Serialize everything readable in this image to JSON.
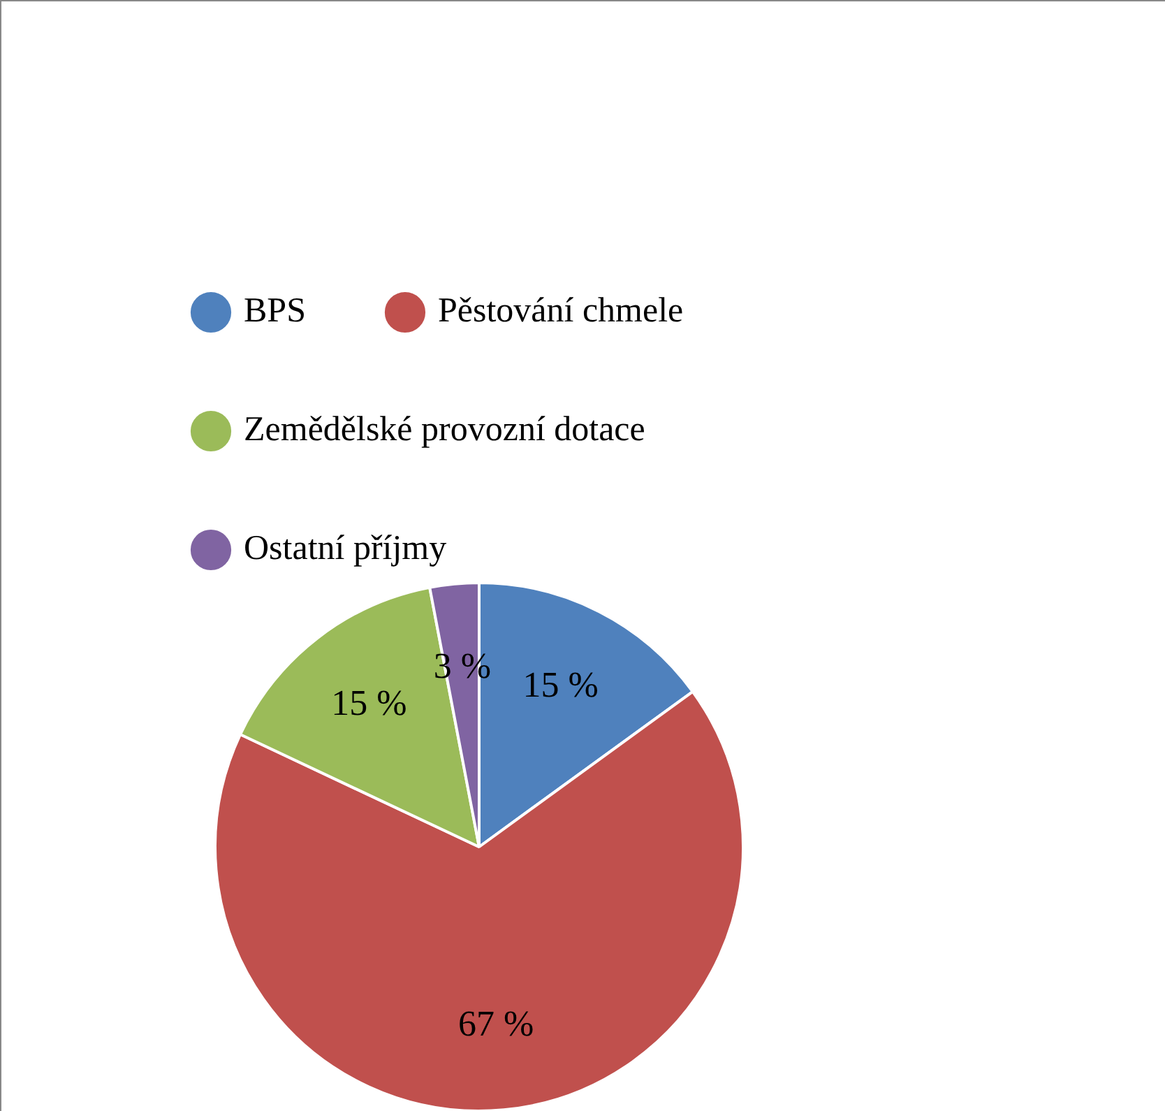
{
  "chart_data": {
    "type": "pie",
    "categories": [
      "BPS",
      "Pěstování chmele",
      "Zemědělské provozní dotace",
      "Ostatní příjmy"
    ],
    "values": [
      15,
      67,
      15,
      3
    ],
    "colors": [
      "#4f81bd",
      "#c0504d",
      "#9bbb59",
      "#8064a2"
    ],
    "value_labels": [
      "15 %",
      "67 %",
      "15 %",
      "3 %"
    ],
    "legend": "top"
  }
}
